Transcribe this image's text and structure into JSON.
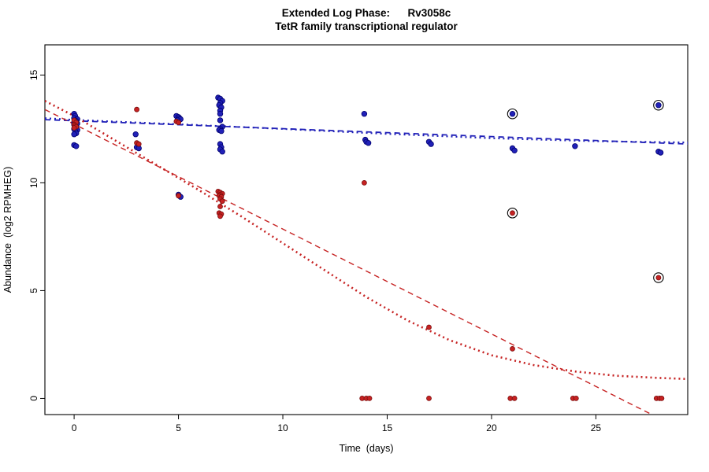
{
  "chart_data": {
    "type": "scatter",
    "title_line1": "Extended Log Phase:      Rv3058c",
    "title_line2": "TetR family transcriptional regulator",
    "xlabel": "Time  (days)",
    "ylabel": "Abundance  (log2 RPMHEG)",
    "xlim": [
      -1.4,
      29.4
    ],
    "ylim": [
      -0.75,
      16.4
    ],
    "xticks": [
      0,
      5,
      10,
      15,
      20,
      25
    ],
    "yticks": [
      0,
      5,
      10,
      15
    ],
    "grid": false,
    "legend": "none",
    "colors": {
      "blue": "#2121b8",
      "blue_stroke": "#00006e",
      "red": "#c62222",
      "red_stroke": "#7a0e0e",
      "circle_outline": "#000000",
      "axis": "#000000"
    },
    "series": [
      {
        "name": "blue-points",
        "kind": "points",
        "color": "blue",
        "r": 3.3,
        "points": [
          [
            0,
            13.2
          ],
          [
            0.05,
            13.1
          ],
          [
            0,
            13.0
          ],
          [
            0.15,
            12.95
          ],
          [
            0.05,
            12.9
          ],
          [
            0.1,
            12.85
          ],
          [
            0,
            12.8
          ],
          [
            0.15,
            12.75
          ],
          [
            0,
            12.7
          ],
          [
            0.1,
            12.6
          ],
          [
            0,
            12.5
          ],
          [
            0.15,
            12.45
          ],
          [
            0.05,
            12.4
          ],
          [
            0.1,
            12.3
          ],
          [
            0,
            12.25
          ],
          [
            0,
            11.75
          ],
          [
            0.1,
            11.7
          ],
          [
            2.95,
            12.25
          ],
          [
            3,
            11.65
          ],
          [
            3.1,
            11.6
          ],
          [
            4.9,
            13.1
          ],
          [
            5,
            13.05
          ],
          [
            5.05,
            13.0
          ],
          [
            5.1,
            12.95
          ],
          [
            4.95,
            12.9
          ],
          [
            5,
            9.45
          ],
          [
            5.1,
            9.35
          ],
          [
            6.9,
            13.95
          ],
          [
            7,
            13.9
          ],
          [
            7.1,
            13.8
          ],
          [
            7,
            13.7
          ],
          [
            6.95,
            13.6
          ],
          [
            7.05,
            13.5
          ],
          [
            7,
            13.35
          ],
          [
            7,
            13.2
          ],
          [
            7,
            12.9
          ],
          [
            7.1,
            12.6
          ],
          [
            7,
            12.5
          ],
          [
            6.95,
            12.45
          ],
          [
            7.05,
            12.4
          ],
          [
            7,
            11.8
          ],
          [
            7.05,
            11.65
          ],
          [
            7,
            11.55
          ],
          [
            7.1,
            11.45
          ],
          [
            13.9,
            13.2
          ],
          [
            13.95,
            12.0
          ],
          [
            14,
            11.9
          ],
          [
            14.1,
            11.85
          ],
          [
            17,
            11.9
          ],
          [
            17.1,
            11.8
          ],
          [
            21,
            13.2
          ],
          [
            21,
            11.6
          ],
          [
            21.1,
            11.5
          ],
          [
            24,
            11.7
          ],
          [
            28,
            13.6
          ],
          [
            28,
            11.45
          ],
          [
            28.1,
            11.4
          ]
        ]
      },
      {
        "name": "red-points",
        "kind": "points",
        "color": "red",
        "r": 3.0,
        "points": [
          [
            0,
            12.9
          ],
          [
            0.1,
            12.8
          ],
          [
            0,
            12.7
          ],
          [
            0.05,
            12.65
          ],
          [
            0.1,
            12.6
          ],
          [
            0,
            12.55
          ],
          [
            3,
            13.4
          ],
          [
            3,
            11.85
          ],
          [
            3.1,
            11.8
          ],
          [
            4.9,
            12.85
          ],
          [
            5,
            12.8
          ],
          [
            5,
            9.4
          ],
          [
            6.9,
            9.6
          ],
          [
            7,
            9.55
          ],
          [
            7.1,
            9.5
          ],
          [
            7,
            9.45
          ],
          [
            6.95,
            9.4
          ],
          [
            7.05,
            9.35
          ],
          [
            7,
            9.25
          ],
          [
            7.1,
            9.15
          ],
          [
            7,
            8.9
          ],
          [
            6.95,
            8.6
          ],
          [
            7.05,
            8.55
          ],
          [
            7,
            8.45
          ],
          [
            13.9,
            10.0
          ],
          [
            13.8,
            0
          ],
          [
            14,
            0
          ],
          [
            14.15,
            0
          ],
          [
            17,
            3.3
          ],
          [
            17,
            0
          ],
          [
            21,
            8.6
          ],
          [
            21,
            2.3
          ],
          [
            20.9,
            0
          ],
          [
            21.1,
            0
          ],
          [
            23.9,
            0
          ],
          [
            24.05,
            0
          ],
          [
            28,
            5.6
          ],
          [
            27.9,
            0
          ],
          [
            28.05,
            0
          ],
          [
            28.15,
            0
          ]
        ]
      },
      {
        "name": "circled-outlier-markers",
        "kind": "circled",
        "color": "circle_outline",
        "r": 6.2,
        "points": [
          [
            21,
            13.2
          ],
          [
            28,
            13.6
          ],
          [
            21,
            8.6
          ],
          [
            28,
            5.6
          ]
        ]
      },
      {
        "name": "blue-dashed-fit",
        "kind": "line",
        "color": "blue",
        "dash": "dashed",
        "width": 1.8,
        "points": [
          [
            -1.4,
            12.93
          ],
          [
            29.4,
            11.8
          ]
        ]
      },
      {
        "name": "blue-dotted-fit",
        "kind": "line",
        "color": "blue",
        "dash": "dotted",
        "width": 2.2,
        "points": [
          [
            -1.4,
            13.0
          ],
          [
            0,
            12.92
          ],
          [
            5,
            12.72
          ],
          [
            10,
            12.5
          ],
          [
            15,
            12.27
          ],
          [
            20,
            12.07
          ],
          [
            25,
            11.93
          ],
          [
            29.4,
            11.87
          ]
        ]
      },
      {
        "name": "red-dashed-fit",
        "kind": "line",
        "color": "red",
        "dash": "dashed",
        "width": 1.4,
        "points": [
          [
            -1.4,
            13.4
          ],
          [
            28.2,
            -1.0
          ]
        ]
      },
      {
        "name": "red-dotted-fit",
        "kind": "line",
        "color": "red",
        "dash": "dotted",
        "width": 2.6,
        "points": [
          [
            -1.4,
            13.8
          ],
          [
            0,
            13.1
          ],
          [
            2,
            11.95
          ],
          [
            4,
            10.8
          ],
          [
            6,
            9.65
          ],
          [
            8,
            8.45
          ],
          [
            10,
            7.2
          ],
          [
            12,
            5.95
          ],
          [
            14,
            4.7
          ],
          [
            16,
            3.6
          ],
          [
            18,
            2.7
          ],
          [
            20,
            2.0
          ],
          [
            22,
            1.55
          ],
          [
            24,
            1.25
          ],
          [
            26,
            1.05
          ],
          [
            28,
            0.95
          ],
          [
            29.4,
            0.9
          ]
        ]
      }
    ]
  }
}
